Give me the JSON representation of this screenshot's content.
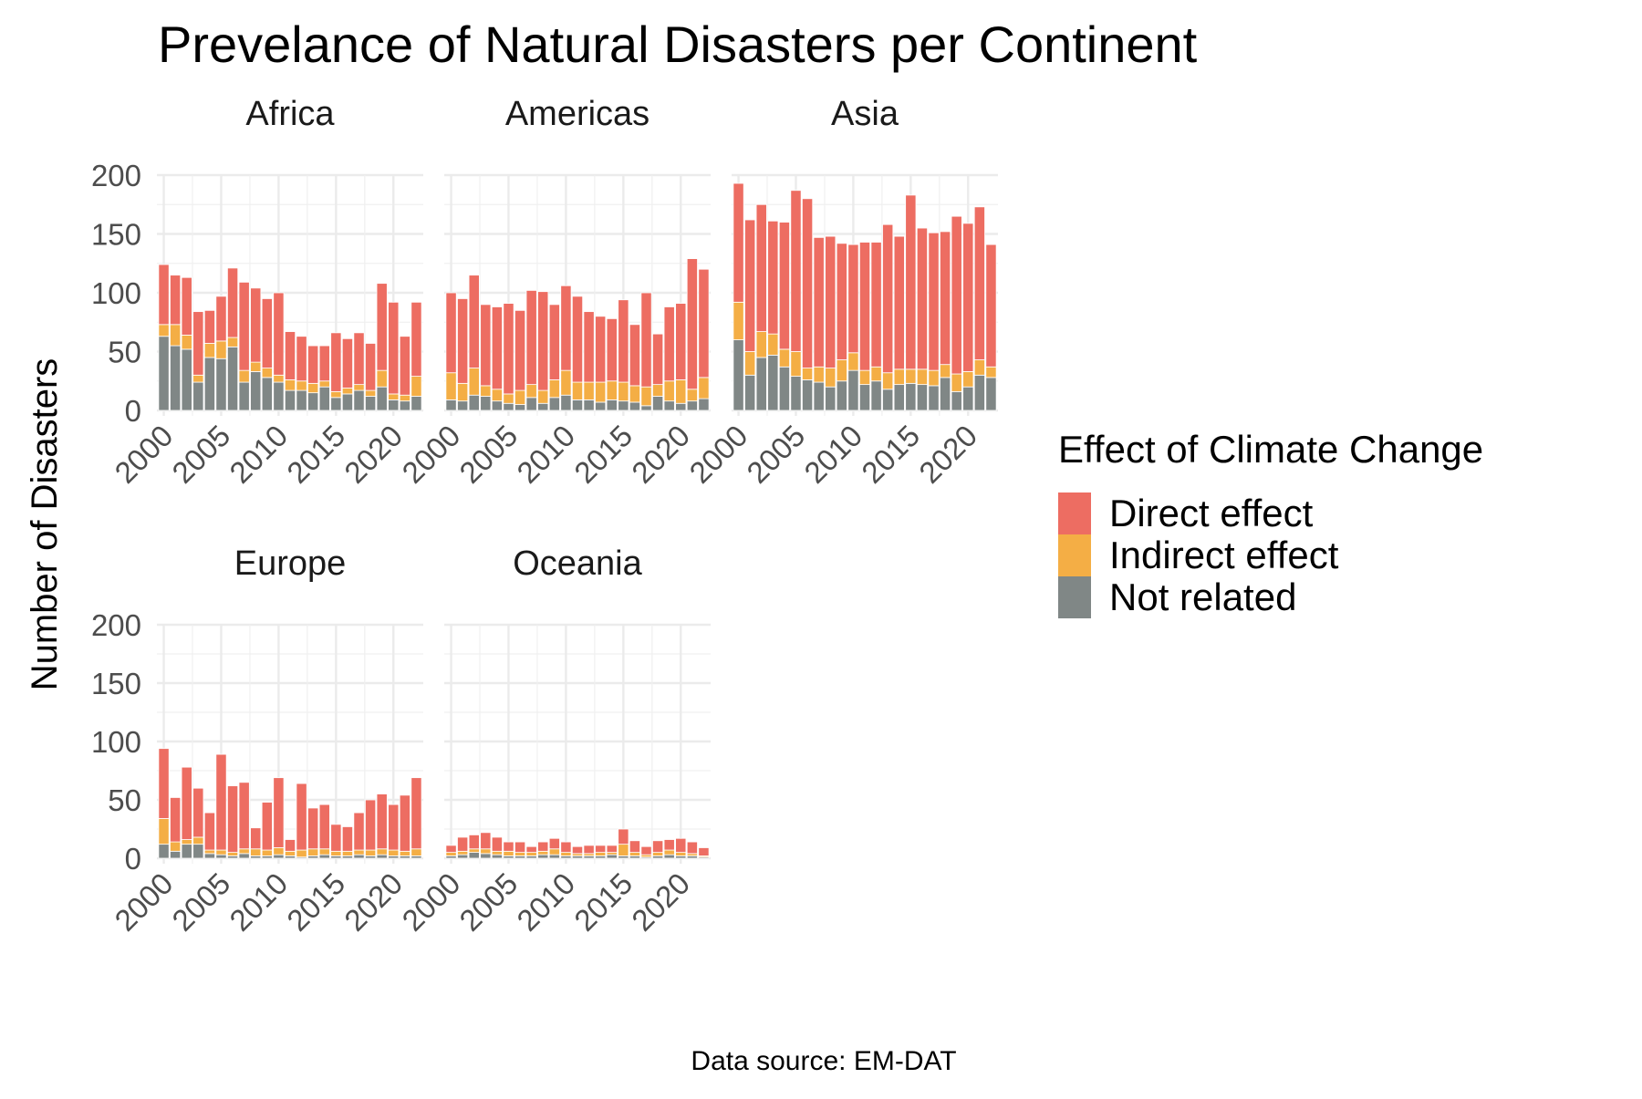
{
  "chart_data": {
    "type": "bar",
    "stacked": true,
    "faceted": true,
    "title": "Prevelance of Natural Disasters per Continent",
    "ylabel": "Number of Disasters",
    "caption": "Data source: EM-DAT",
    "ylim": [
      0,
      200
    ],
    "yticks": [
      0,
      50,
      100,
      150,
      200
    ],
    "xticks": [
      2000,
      2005,
      2010,
      2015,
      2020
    ],
    "years": [
      2000,
      2001,
      2002,
      2003,
      2004,
      2005,
      2006,
      2007,
      2008,
      2009,
      2010,
      2011,
      2012,
      2013,
      2014,
      2015,
      2016,
      2017,
      2018,
      2019,
      2020,
      2021,
      2022
    ],
    "legend": {
      "title": "Effect of Climate Change",
      "position": "right",
      "entries": [
        {
          "key": "direct",
          "label": "Direct effect",
          "color": "#ED6D62"
        },
        {
          "key": "indirect",
          "label": "Indirect effect",
          "color": "#F4AE45"
        },
        {
          "key": "not_related",
          "label": "Not related",
          "color": "#808786"
        }
      ]
    },
    "facets": [
      {
        "name": "Africa",
        "years": [
          2000,
          2001,
          2002,
          2003,
          2004,
          2005,
          2006,
          2007,
          2008,
          2009,
          2010,
          2011,
          2012,
          2013,
          2014,
          2015,
          2016,
          2017,
          2018,
          2019,
          2020,
          2021,
          2022
        ],
        "series": [
          {
            "name": "Not related",
            "values": [
              63,
              55,
              52,
              24,
              45,
              44,
              54,
              24,
              33,
              28,
              24,
              17,
              17,
              15,
              20,
              11,
              14,
              17,
              12,
              20,
              9,
              8,
              12
            ]
          },
          {
            "name": "Indirect effect",
            "values": [
              10,
              18,
              12,
              6,
              12,
              15,
              8,
              10,
              8,
              8,
              6,
              9,
              8,
              8,
              5,
              5,
              5,
              5,
              5,
              14,
              5,
              5,
              17
            ]
          },
          {
            "name": "Direct effect",
            "values": [
              51,
              42,
              49,
              54,
              28,
              38,
              59,
              75,
              63,
              59,
              70,
              41,
              38,
              32,
              30,
              50,
              42,
              44,
              40,
              74,
              78,
              50,
              63
            ]
          }
        ]
      },
      {
        "name": "Americas",
        "years": [
          2000,
          2001,
          2002,
          2003,
          2004,
          2005,
          2006,
          2007,
          2008,
          2009,
          2010,
          2011,
          2012,
          2013,
          2014,
          2015,
          2016,
          2017,
          2018,
          2019,
          2020,
          2021,
          2022
        ],
        "series": [
          {
            "name": "Not related",
            "values": [
              9,
              8,
              13,
              12,
              8,
              6,
              5,
              11,
              6,
              11,
              13,
              9,
              9,
              7,
              9,
              8,
              7,
              4,
              12,
              8,
              6,
              8,
              10
            ]
          },
          {
            "name": "Indirect effect",
            "values": [
              23,
              15,
              23,
              9,
              10,
              8,
              12,
              11,
              11,
              15,
              21,
              15,
              15,
              17,
              16,
              16,
              14,
              16,
              10,
              17,
              20,
              10,
              18
            ]
          },
          {
            "name": "Direct effect",
            "values": [
              68,
              72,
              79,
              69,
              70,
              77,
              68,
              80,
              84,
              64,
              72,
              73,
              60,
              56,
              53,
              70,
              52,
              80,
              43,
              63,
              65,
              111,
              92
            ]
          }
        ]
      },
      {
        "name": "Asia",
        "years": [
          2000,
          2001,
          2002,
          2003,
          2004,
          2005,
          2006,
          2007,
          2008,
          2009,
          2010,
          2011,
          2012,
          2013,
          2014,
          2015,
          2016,
          2017,
          2018,
          2019,
          2020,
          2021,
          2022
        ],
        "series": [
          {
            "name": "Not related",
            "values": [
              60,
              30,
              45,
              47,
              37,
              29,
              26,
              24,
              20,
              25,
              34,
              22,
              25,
              18,
              22,
              23,
              22,
              21,
              28,
              16,
              20,
              30,
              28
            ]
          },
          {
            "name": "Indirect effect",
            "values": [
              32,
              20,
              22,
              18,
              15,
              21,
              10,
              13,
              16,
              18,
              15,
              12,
              12,
              14,
              13,
              12,
              13,
              13,
              11,
              15,
              13,
              13,
              9
            ]
          },
          {
            "name": "Direct effect",
            "values": [
              101,
              112,
              108,
              96,
              108,
              137,
              144,
              110,
              112,
              99,
              92,
              109,
              106,
              126,
              113,
              148,
              120,
              117,
              113,
              134,
              126,
              130,
              104
            ]
          }
        ]
      },
      {
        "name": "Europe",
        "years": [
          2000,
          2001,
          2002,
          2003,
          2004,
          2005,
          2006,
          2007,
          2008,
          2009,
          2010,
          2011,
          2012,
          2013,
          2014,
          2015,
          2016,
          2017,
          2018,
          2019,
          2020,
          2021,
          2022
        ],
        "series": [
          {
            "name": "Not related",
            "values": [
              12,
              6,
              12,
              12,
              4,
              3,
              2,
              4,
              2,
              2,
              3,
              2,
              1,
              2,
              3,
              2,
              2,
              3,
              2,
              3,
              2,
              2,
              2
            ]
          },
          {
            "name": "Indirect effect",
            "values": [
              22,
              8,
              4,
              6,
              3,
              4,
              3,
              4,
              6,
              5,
              6,
              4,
              6,
              6,
              5,
              4,
              4,
              4,
              5,
              5,
              5,
              4,
              6
            ]
          },
          {
            "name": "Direct effect",
            "values": [
              60,
              38,
              62,
              42,
              32,
              82,
              57,
              57,
              18,
              41,
              60,
              10,
              57,
              35,
              38,
              23,
              21,
              32,
              43,
              47,
              39,
              48,
              61
            ]
          }
        ]
      },
      {
        "name": "Oceania",
        "years": [
          2000,
          2001,
          2002,
          2003,
          2004,
          2005,
          2006,
          2007,
          2008,
          2009,
          2010,
          2011,
          2012,
          2013,
          2014,
          2015,
          2016,
          2017,
          2018,
          2019,
          2020,
          2021,
          2022
        ],
        "series": [
          {
            "name": "Not related",
            "values": [
              2,
              3,
              5,
              4,
              3,
              2,
              2,
              2,
              3,
              3,
              2,
              2,
              2,
              2,
              3,
              2,
              2,
              1,
              2,
              3,
              2,
              2,
              1
            ]
          },
          {
            "name": "Indirect effect",
            "values": [
              3,
              3,
              3,
              4,
              3,
              4,
              3,
              3,
              3,
              5,
              3,
              2,
              2,
              3,
              2,
              10,
              3,
              2,
              3,
              4,
              3,
              2,
              1
            ]
          },
          {
            "name": "Direct effect",
            "values": [
              6,
              12,
              12,
              14,
              12,
              8,
              9,
              5,
              8,
              9,
              9,
              6,
              7,
              6,
              6,
              13,
              10,
              7,
              10,
              9,
              12,
              10,
              7
            ]
          }
        ]
      }
    ]
  }
}
